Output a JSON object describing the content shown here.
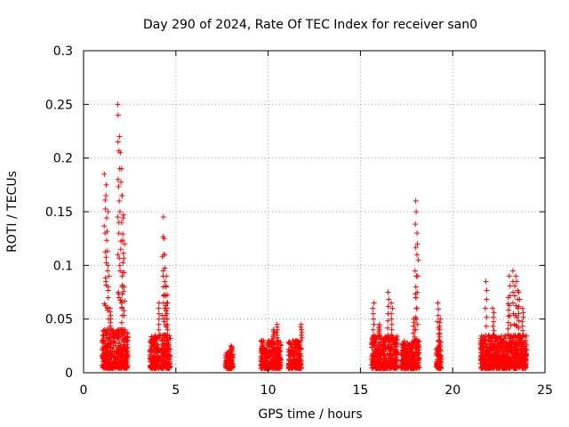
{
  "chart_data": {
    "type": "scatter",
    "title": "Day 290 of 2024, Rate Of TEC Index for receiver san0",
    "xlabel": "GPS time / hours",
    "ylabel": "ROTI / TECUs",
    "xlim": [
      0,
      25
    ],
    "ylim": [
      0,
      0.3
    ],
    "x_ticks": [
      0,
      5,
      10,
      15,
      20,
      25
    ],
    "x_tick_labels": [
      "0",
      "5",
      "10",
      "15",
      "20",
      "25"
    ],
    "y_ticks": [
      0,
      0.05,
      0.1,
      0.15,
      0.2,
      0.25,
      0.3
    ],
    "y_tick_labels": [
      "0",
      "0.05",
      "0.1",
      "0.15",
      "0.2",
      "0.25",
      "0.3"
    ],
    "grid": true,
    "marker": "+",
    "color": "#ff0000",
    "series": [
      {
        "name": "ROTI",
        "clusters": [
          {
            "x_range": [
              1.0,
              2.4
            ],
            "base_max": 0.04,
            "spikes": [
              [
                1.15,
                0.185
              ],
              [
                1.2,
                0.175
              ],
              [
                1.25,
                0.165
              ],
              [
                1.3,
                0.15
              ],
              [
                1.35,
                0.1
              ],
              [
                1.45,
                0.06
              ],
              [
                1.85,
                0.25
              ],
              [
                1.9,
                0.24
              ],
              [
                1.95,
                0.22
              ],
              [
                2.0,
                0.205
              ],
              [
                2.05,
                0.19
              ],
              [
                2.1,
                0.165
              ],
              [
                2.15,
                0.147
              ],
              [
                2.2,
                0.12
              ],
              [
                2.1,
                0.08
              ]
            ]
          },
          {
            "x_range": [
              3.6,
              4.7
            ],
            "base_max": 0.035,
            "spikes": [
              [
                4.1,
                0.065
              ],
              [
                4.3,
                0.145
              ],
              [
                4.35,
                0.125
              ],
              [
                4.4,
                0.11
              ],
              [
                4.45,
                0.09
              ],
              [
                4.5,
                0.08
              ],
              [
                4.55,
                0.065
              ]
            ]
          },
          {
            "x_range": [
              7.7,
              8.1
            ],
            "base_max": 0.02,
            "spikes": [
              [
                8.0,
                0.025
              ]
            ]
          },
          {
            "x_range": [
              9.6,
              10.7
            ],
            "base_max": 0.03,
            "spikes": [
              [
                10.3,
                0.04
              ],
              [
                10.5,
                0.045
              ]
            ]
          },
          {
            "x_range": [
              11.1,
              11.8
            ],
            "base_max": 0.03,
            "spikes": [
              [
                11.8,
                0.045
              ]
            ]
          },
          {
            "x_range": [
              15.6,
              17.0
            ],
            "base_max": 0.035,
            "spikes": [
              [
                15.7,
                0.065
              ],
              [
                16.0,
                0.045
              ],
              [
                16.5,
                0.075
              ],
              [
                16.7,
                0.065
              ]
            ]
          },
          {
            "x_range": [
              17.2,
              18.2
            ],
            "base_max": 0.03,
            "spikes": [
              [
                18.0,
                0.16
              ],
              [
                18.05,
                0.15
              ],
              [
                18.1,
                0.12
              ],
              [
                18.0,
                0.09
              ],
              [
                17.9,
                0.05
              ]
            ]
          },
          {
            "x_range": [
              19.1,
              19.4
            ],
            "base_max": 0.03,
            "spikes": [
              [
                19.2,
                0.065
              ],
              [
                19.3,
                0.05
              ]
            ]
          },
          {
            "x_range": [
              21.5,
              24.0
            ],
            "base_max": 0.035,
            "spikes": [
              [
                21.8,
                0.085
              ],
              [
                22.2,
                0.06
              ],
              [
                23.0,
                0.07
              ],
              [
                23.1,
                0.09
              ],
              [
                23.3,
                0.095
              ],
              [
                23.4,
                0.09
              ],
              [
                23.5,
                0.085
              ],
              [
                23.6,
                0.075
              ],
              [
                23.8,
                0.06
              ]
            ]
          }
        ]
      }
    ]
  }
}
